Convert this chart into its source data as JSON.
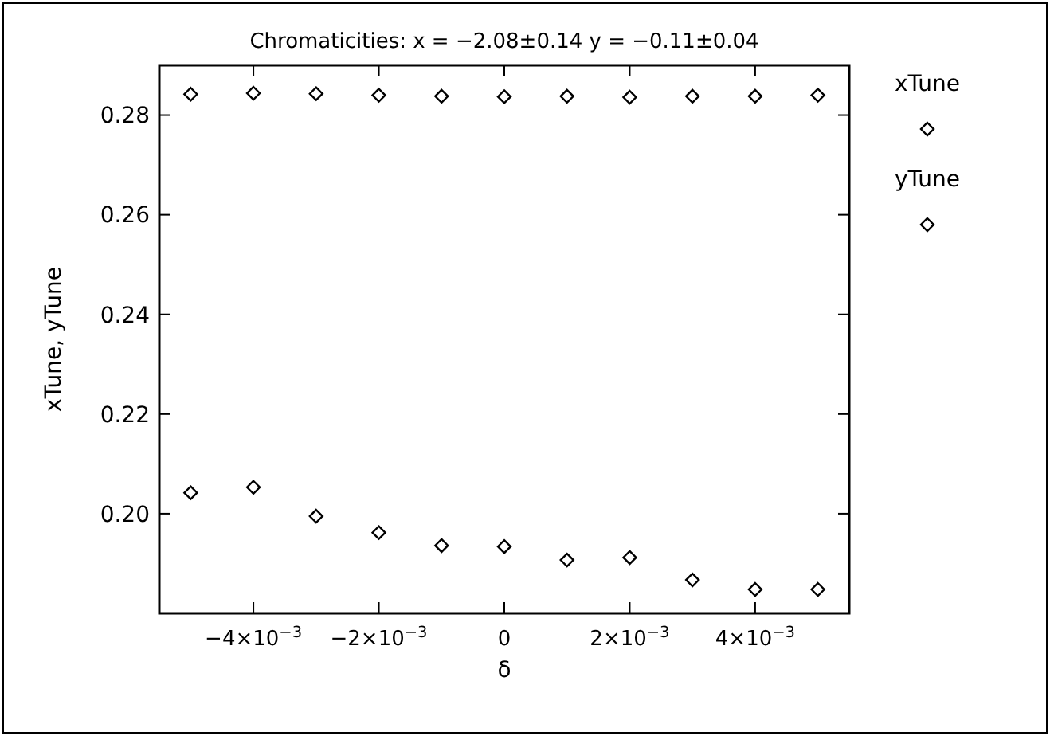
{
  "chart_data": {
    "type": "scatter",
    "title": "Chromaticities: x = −2.08±0.14 y = −0.11±0.04",
    "xlabel": "δ",
    "ylabel": "xTune, yTune",
    "x": [
      -0.005,
      -0.004,
      -0.003,
      -0.002,
      -0.001,
      0,
      0.001,
      0.002,
      0.003,
      0.004,
      0.005
    ],
    "series": [
      {
        "name": "xTune",
        "color": "#000000",
        "values": [
          0.2842,
          0.2844,
          0.2843,
          0.284,
          0.2838,
          0.2837,
          0.2838,
          0.2836,
          0.2838,
          0.2838,
          0.284
        ]
      },
      {
        "name": "yTune",
        "color": "#000000",
        "values": [
          0.2042,
          0.2053,
          0.1995,
          0.1962,
          0.1936,
          0.1934,
          0.1907,
          0.1912,
          0.1867,
          0.1848,
          0.1848
        ]
      }
    ],
    "xlim": [
      -0.0055,
      0.0055
    ],
    "ylim": [
      0.18,
      0.29
    ],
    "xticks": [
      {
        "value": -0.004,
        "label": "−4×10$^{−3}$"
      },
      {
        "value": -0.002,
        "label": "−2×10$^{−3}$"
      },
      0,
      {
        "value": 0.002,
        "label": "2×10$^{−3}$"
      },
      {
        "value": 0.004,
        "label": "4×10$^{−3}$"
      }
    ],
    "yticks": [
      {
        "value": 0.2,
        "label": "0.20"
      },
      {
        "value": 0.22,
        "label": "0.22"
      },
      {
        "value": 0.24,
        "label": "0.24"
      },
      {
        "value": 0.26,
        "label": "0.26"
      },
      {
        "value": 0.28,
        "label": "0.28"
      }
    ],
    "marker": "diamond",
    "grid": false,
    "legend": "top right"
  }
}
